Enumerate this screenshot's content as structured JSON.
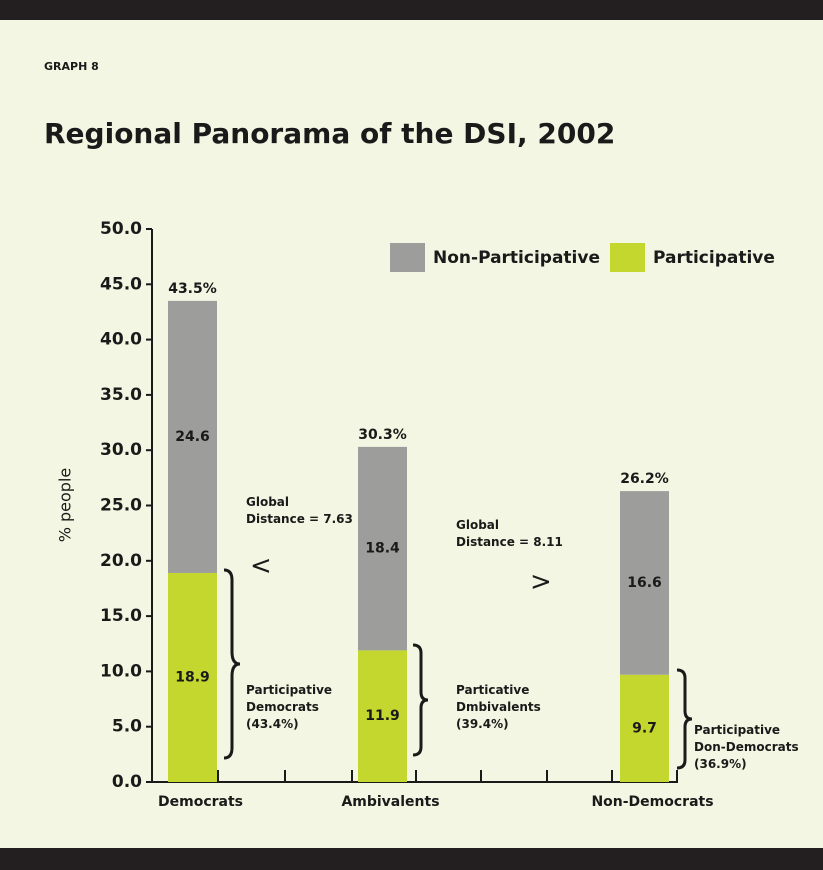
{
  "chart_data": {
    "type": "stacked_bar",
    "graph_label": "GRAPH 8",
    "title": "Regional Panorama of the DSI, 2002",
    "ylabel": "% people",
    "categories": [
      "Democrats",
      "Ambivalents",
      "Non-Democrats"
    ],
    "series": [
      {
        "name": "Participative",
        "color": "#c4d72e",
        "values": [
          18.9,
          11.9,
          9.7
        ]
      },
      {
        "name": "Non-Participative",
        "color": "#9d9d9c",
        "values": [
          24.6,
          18.4,
          16.6
        ]
      }
    ],
    "total_labels": [
      "43.5%",
      "30.3%",
      "26.2%"
    ],
    "ylim": [
      0,
      50
    ],
    "yticks": [
      {
        "value": 0,
        "label": "0.0"
      },
      {
        "value": 5,
        "label": "5.0"
      },
      {
        "value": 10,
        "label": "10.0"
      },
      {
        "value": 15,
        "label": "15.0"
      },
      {
        "value": 20,
        "label": "20.0"
      },
      {
        "value": 25,
        "label": "25.0"
      },
      {
        "value": 30,
        "label": "30.0"
      },
      {
        "value": 35,
        "label": "35.0"
      },
      {
        "value": 40,
        "label": "40.0"
      },
      {
        "value": 45,
        "label": "45.0"
      },
      {
        "value": 50,
        "label": "50.0"
      }
    ],
    "legend_order": [
      1,
      0
    ],
    "annotations": [
      {
        "lines": [
          "Global",
          "Distance = 7.63"
        ]
      },
      {
        "lines": [
          "Global",
          "Distance = 8.11"
        ]
      },
      {
        "lines": [
          "<"
        ]
      },
      {
        "lines": [
          ">"
        ]
      },
      {
        "lines": [
          "Participative",
          "Democrats",
          "(43.4%)"
        ]
      },
      {
        "lines": [
          "Particative",
          "Dmbivalents",
          "(39.4%)"
        ]
      },
      {
        "lines": [
          "Participative",
          "Don-Democrats",
          "(36.9%)"
        ]
      }
    ]
  }
}
